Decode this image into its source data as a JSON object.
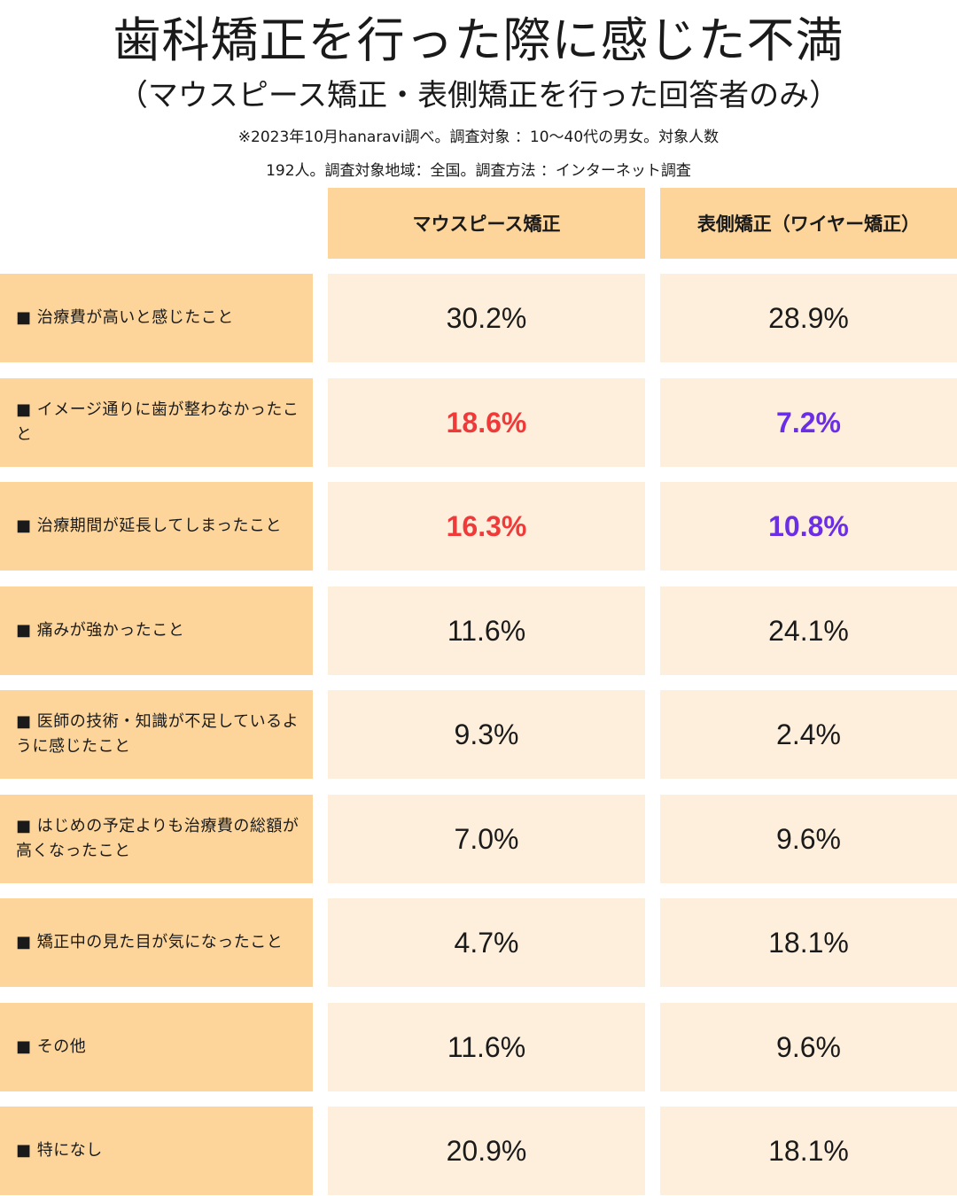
{
  "title": "歯科矯正を行った際に感じた不満",
  "subtitle": "（マウスピース矯正・表側矯正を行った回答者のみ）",
  "note_line1": "※2023年10月hanaravi調べ。調査対象 ：10〜40代の男女。対象人数",
  "note_line2": "192人。調査対象地域：全国。調査方法 ：インターネット調査",
  "colors": {
    "header_bg": "#fdd59a",
    "label_bg": "#fdd59a",
    "cell_bg": "#feefdc",
    "highlight_red": "#f03a3a",
    "highlight_purple": "#6b2ee6"
  },
  "chart_data": {
    "type": "table",
    "title": "歯科矯正を行った際に感じた不満",
    "subtitle": "（マウスピース矯正・表側矯正を行った回答者のみ）",
    "columns": [
      "マウスピース矯正",
      "表側矯正（ワイヤー矯正）"
    ],
    "rows": [
      {
        "label": "■ 治療費が高いと感じたこと",
        "values": [
          "30.2%",
          "28.9%"
        ],
        "highlight": false
      },
      {
        "label": "■ イメージ通りに歯が整わなかったこと",
        "values": [
          "18.6%",
          "7.2%"
        ],
        "highlight": true
      },
      {
        "label": "■ 治療期間が延長してしまったこと",
        "values": [
          "16.3%",
          "10.8%"
        ],
        "highlight": true
      },
      {
        "label": "■ 痛みが強かったこと",
        "values": [
          "11.6%",
          "24.1%"
        ],
        "highlight": false
      },
      {
        "label": "■ 医師の技術・知識が不足しているように感じたこと",
        "values": [
          "9.3%",
          "2.4%"
        ],
        "highlight": false
      },
      {
        "label": "■ はじめの予定よりも治療費の総額が高くなったこと",
        "values": [
          "7.0%",
          "9.6%"
        ],
        "highlight": false
      },
      {
        "label": "■ 矯正中の見た目が気になったこと",
        "values": [
          "4.7%",
          "18.1%"
        ],
        "highlight": false
      },
      {
        "label": "■ その他",
        "values": [
          "11.6%",
          "9.6%"
        ],
        "highlight": false
      },
      {
        "label": "■ 特になし",
        "values": [
          "20.9%",
          "18.1%"
        ],
        "highlight": false
      }
    ]
  }
}
